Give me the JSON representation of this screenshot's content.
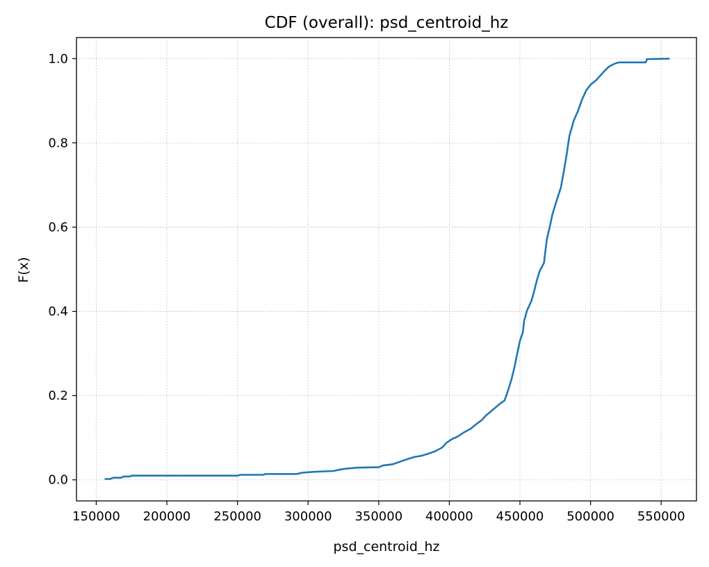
{
  "chart_data": {
    "type": "line",
    "title": "CDF (overall): psd_centroid_hz",
    "xlabel": "psd_centroid_hz",
    "ylabel": "F(x)",
    "xlim": [
      136000,
      575000
    ],
    "ylim": [
      -0.05,
      1.05
    ],
    "xticks": [
      150000,
      200000,
      250000,
      300000,
      350000,
      400000,
      450000,
      500000,
      550000
    ],
    "xtick_labels": [
      "150000",
      "200000",
      "250000",
      "300000",
      "350000",
      "400000",
      "450000",
      "500000",
      "550000"
    ],
    "yticks": [
      0.0,
      0.2,
      0.4,
      0.6,
      0.8,
      1.0
    ],
    "ytick_labels": [
      "0.0",
      "0.2",
      "0.4",
      "0.6",
      "0.8",
      "1.0"
    ],
    "grid": true,
    "series": [
      {
        "color": "#1f77b4",
        "points": [
          [
            156000,
            0.002
          ],
          [
            160000,
            0.002
          ],
          [
            162000,
            0.005
          ],
          [
            168000,
            0.005
          ],
          [
            169000,
            0.008
          ],
          [
            174000,
            0.008
          ],
          [
            175000,
            0.01
          ],
          [
            250000,
            0.01
          ],
          [
            252000,
            0.012
          ],
          [
            268000,
            0.012
          ],
          [
            270000,
            0.014
          ],
          [
            292000,
            0.014
          ],
          [
            296000,
            0.017
          ],
          [
            304000,
            0.019
          ],
          [
            318000,
            0.021
          ],
          [
            322000,
            0.024
          ],
          [
            328000,
            0.027
          ],
          [
            335000,
            0.029
          ],
          [
            350000,
            0.03
          ],
          [
            353000,
            0.034
          ],
          [
            360000,
            0.037
          ],
          [
            365000,
            0.043
          ],
          [
            370000,
            0.049
          ],
          [
            375000,
            0.054
          ],
          [
            380000,
            0.057
          ],
          [
            385000,
            0.062
          ],
          [
            390000,
            0.068
          ],
          [
            395000,
            0.077
          ],
          [
            398000,
            0.088
          ],
          [
            402000,
            0.097
          ],
          [
            406000,
            0.103
          ],
          [
            410000,
            0.112
          ],
          [
            415000,
            0.121
          ],
          [
            419000,
            0.132
          ],
          [
            423000,
            0.142
          ],
          [
            426000,
            0.153
          ],
          [
            431000,
            0.167
          ],
          [
            436000,
            0.181
          ],
          [
            439000,
            0.188
          ],
          [
            441000,
            0.206
          ],
          [
            444000,
            0.238
          ],
          [
            446000,
            0.266
          ],
          [
            448000,
            0.298
          ],
          [
            450000,
            0.33
          ],
          [
            452000,
            0.35
          ],
          [
            453000,
            0.378
          ],
          [
            455000,
            0.402
          ],
          [
            458000,
            0.424
          ],
          [
            460000,
            0.447
          ],
          [
            462000,
            0.474
          ],
          [
            464000,
            0.496
          ],
          [
            467000,
            0.515
          ],
          [
            469000,
            0.57
          ],
          [
            471000,
            0.599
          ],
          [
            473000,
            0.63
          ],
          [
            476000,
            0.663
          ],
          [
            479000,
            0.694
          ],
          [
            481000,
            0.731
          ],
          [
            483000,
            0.771
          ],
          [
            485000,
            0.816
          ],
          [
            488000,
            0.852
          ],
          [
            491000,
            0.875
          ],
          [
            494000,
            0.903
          ],
          [
            497000,
            0.925
          ],
          [
            500000,
            0.938
          ],
          [
            504000,
            0.949
          ],
          [
            507000,
            0.96
          ],
          [
            510000,
            0.971
          ],
          [
            513000,
            0.981
          ],
          [
            517000,
            0.988
          ],
          [
            520000,
            0.991
          ],
          [
            539000,
            0.991
          ],
          [
            540000,
            0.999
          ],
          [
            556000,
            1.0
          ]
        ]
      }
    ]
  }
}
